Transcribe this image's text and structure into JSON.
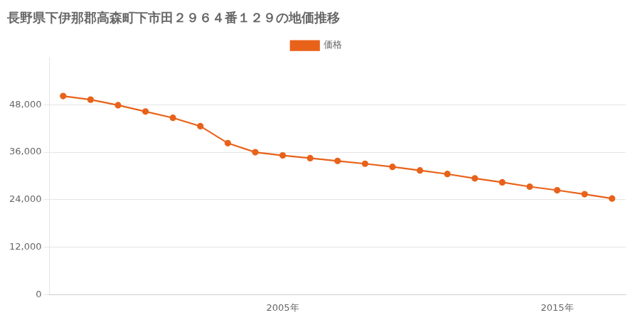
{
  "chart_data": {
    "type": "line",
    "title": "長野県下伊那郡高森町下市田２９６４番１２９の地価推移",
    "x": [
      1997,
      1998,
      1999,
      2000,
      2001,
      2002,
      2003,
      2004,
      2005,
      2006,
      2007,
      2008,
      2009,
      2010,
      2011,
      2012,
      2013,
      2014,
      2015,
      2016,
      2017
    ],
    "series": [
      {
        "name": "価格",
        "color": "#e8621a",
        "marker": "circle",
        "values": [
          50200,
          49300,
          47900,
          46300,
          44700,
          42600,
          38300,
          36000,
          35200,
          34500,
          33800,
          33100,
          32300,
          31400,
          30500,
          29400,
          28400,
          27300,
          26400,
          25400,
          24300
        ]
      }
    ],
    "xlim": [
      1996.5,
      2017.5
    ],
    "xticks": [
      {
        "value": 2005,
        "label": "2005年"
      },
      {
        "value": 2015,
        "label": "2015年"
      }
    ],
    "ylim": [
      0,
      60000
    ],
    "yticks": [
      0,
      {
        "value": 12000,
        "label": "12,000"
      },
      {
        "value": 24000,
        "label": "24,000"
      },
      {
        "value": 36000,
        "label": "36,000"
      },
      {
        "value": 48000,
        "label": "48,000"
      }
    ],
    "grid": "y",
    "legend": "top"
  }
}
